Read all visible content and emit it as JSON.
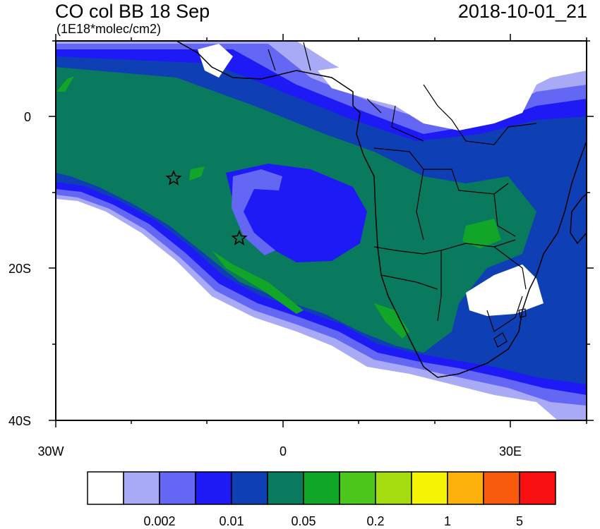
{
  "header": {
    "title": "CO col BB 18 Sep",
    "units": "(1E18*molec/cm2)",
    "datetime": "2018-10-01_21"
  },
  "map": {
    "lon_range": [
      -30,
      40
    ],
    "lat_range": [
      -40,
      10
    ],
    "x_tick_labels": [
      "30W",
      "0",
      "30E"
    ],
    "y_tick_labels": [
      "0",
      "20S",
      "40S"
    ],
    "markers": [
      {
        "name": "star",
        "lon": -14.4,
        "lat": -8.0
      },
      {
        "name": "star",
        "lon": -5.7,
        "lat": -15.9
      }
    ]
  },
  "colorbar": {
    "colors": [
      "#ffffff",
      "#a8aaf6",
      "#6467f4",
      "#1e1af6",
      "#0e3fb4",
      "#0a7a5e",
      "#12a628",
      "#4cc51c",
      "#a4dc10",
      "#f4f404",
      "#fbb10a",
      "#fa5a0e",
      "#f81010"
    ],
    "labels": [
      "0.002",
      "0.01",
      "0.05",
      "0.2",
      "1",
      "5"
    ]
  },
  "plume_colors": {
    "lightest": "#a8aaf6",
    "light": "#6467f4",
    "blue": "#1e1af6",
    "dark_blue": "#0e3fb4",
    "teal": "#0a7a5e",
    "green": "#12a628",
    "light_green": "#4cc51c"
  }
}
